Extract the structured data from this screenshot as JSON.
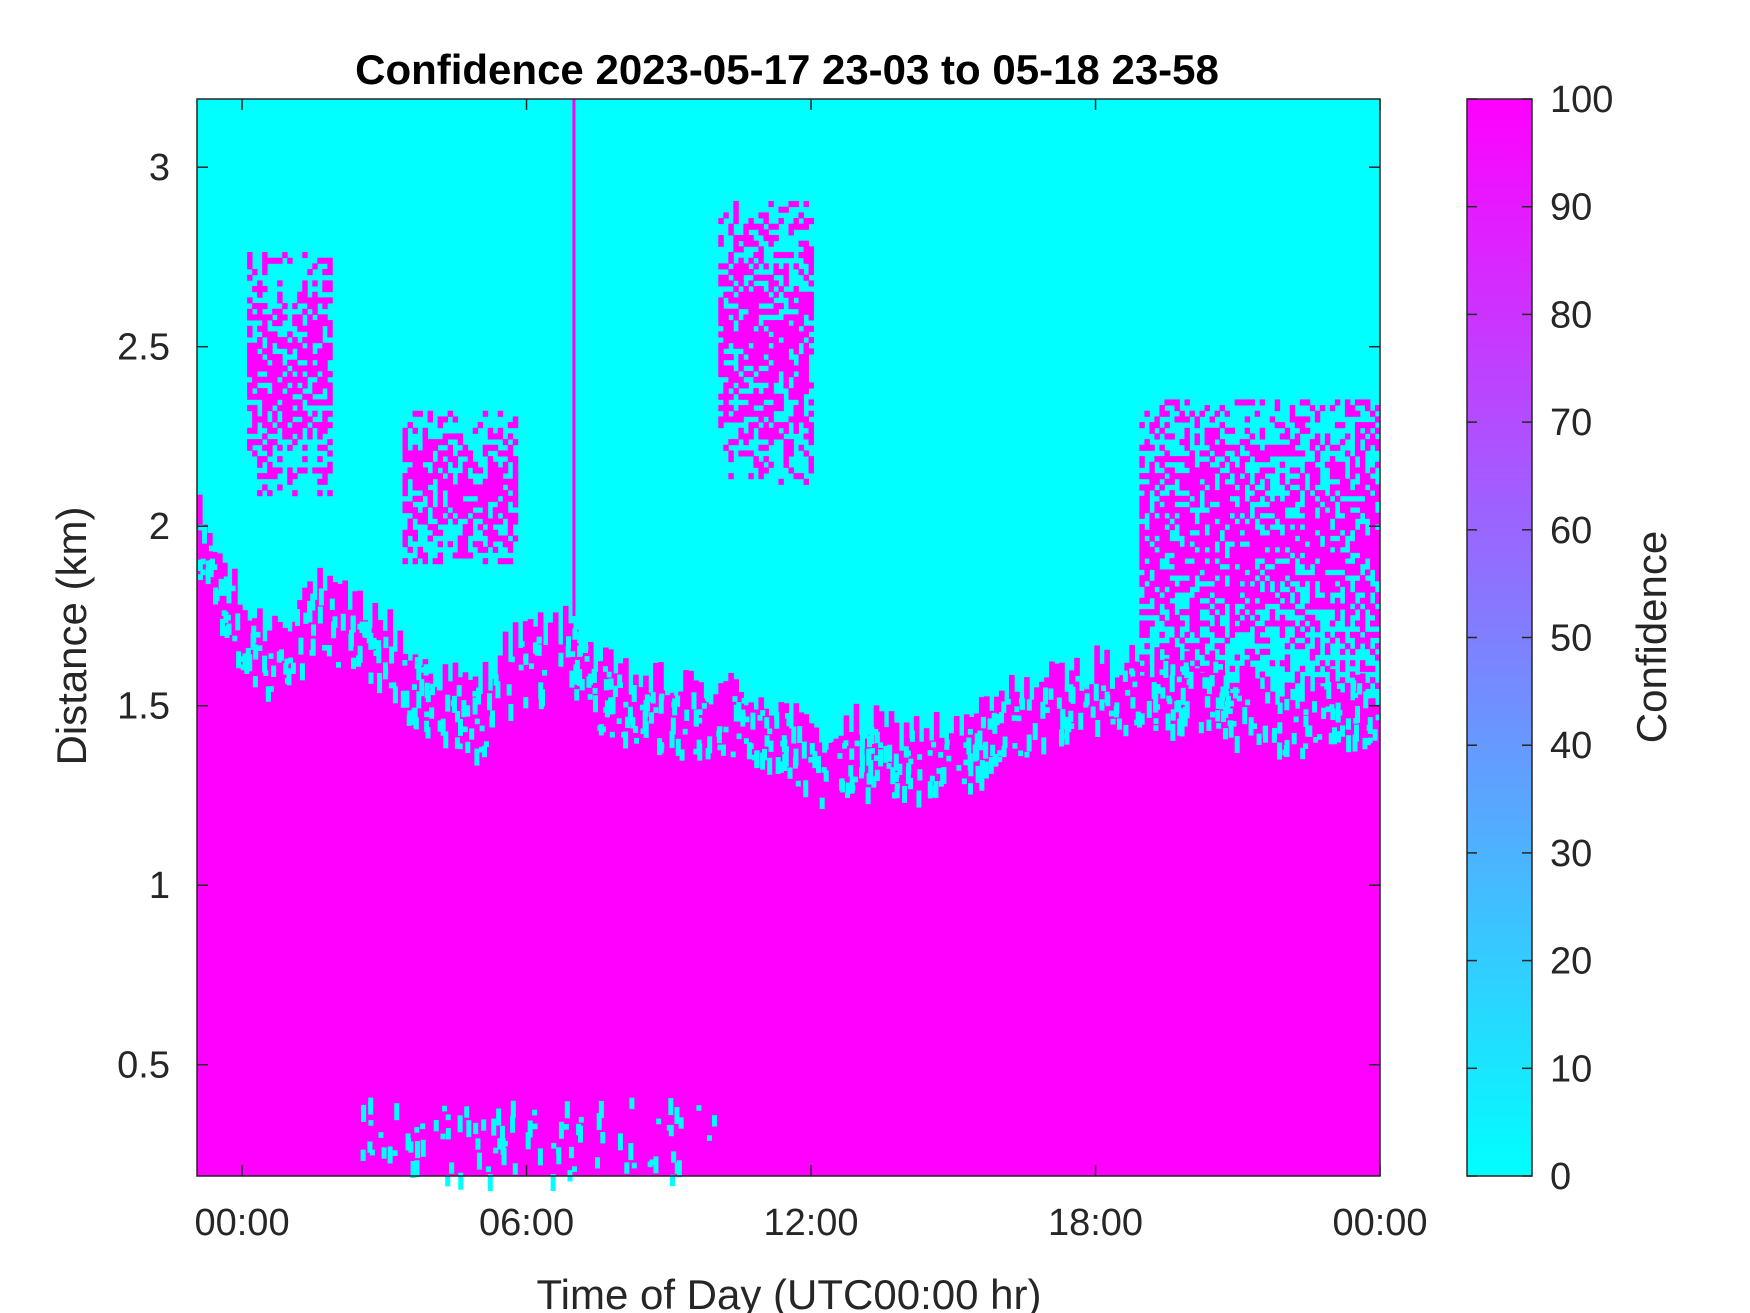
{
  "chart_data": {
    "type": "heatmap",
    "title": "Confidence 2023-05-17 23-03 to 05-18 23-58",
    "xlabel": "Time of Day (UTC00:00 hr)",
    "ylabel": "Distance (km)",
    "colorbar_label": "Confidence",
    "x_unit": "hours from 2023-05-18 00:00 UTC",
    "xlim": [
      -0.95,
      24.0
    ],
    "ylim": [
      0.19,
      3.19
    ],
    "x_ticks": [
      0,
      6,
      12,
      18,
      24
    ],
    "x_tick_labels": [
      "00:00",
      "06:00",
      "12:00",
      "18:00",
      "00:00"
    ],
    "y_ticks": [
      0.5,
      1,
      1.5,
      2,
      2.5,
      3
    ],
    "y_tick_labels": [
      "0.5",
      "1",
      "1.5",
      "2",
      "2.5",
      "3"
    ],
    "colorbar_range": [
      0,
      100
    ],
    "colorbar_ticks": [
      0,
      10,
      20,
      30,
      40,
      50,
      60,
      70,
      80,
      90,
      100
    ],
    "colorbar_tick_labels": [
      "0",
      "10",
      "20",
      "30",
      "40",
      "50",
      "60",
      "70",
      "80",
      "90",
      "100"
    ],
    "colormap": {
      "low_color": "#00ffff",
      "high_color": "#ff00ff"
    },
    "description_of_field": "Confidence near 100 below a boundary, near 0 above it",
    "boundary_x": [
      -0.95,
      -0.5,
      0,
      0.5,
      1,
      1.5,
      2,
      2.5,
      3,
      3.5,
      4,
      4.5,
      5,
      5.5,
      6,
      6.5,
      7,
      7.5,
      8,
      8.5,
      9,
      9.5,
      10,
      10.5,
      11,
      11.5,
      12,
      12.5,
      13,
      13.5,
      14,
      14.5,
      15,
      15.5,
      16,
      16.5,
      17,
      17.5,
      18,
      18.5,
      19,
      19.5,
      20,
      20.5,
      21,
      21.5,
      22,
      22.5,
      23,
      23.5,
      24
    ],
    "boundary_y_km": [
      2.05,
      1.92,
      1.78,
      1.72,
      1.76,
      1.84,
      1.8,
      1.78,
      1.74,
      1.65,
      1.6,
      1.57,
      1.55,
      1.66,
      1.7,
      1.72,
      1.72,
      1.62,
      1.58,
      1.57,
      1.56,
      1.55,
      1.55,
      1.54,
      1.52,
      1.48,
      1.42,
      1.42,
      1.45,
      1.44,
      1.43,
      1.44,
      1.42,
      1.47,
      1.52,
      1.55,
      1.57,
      1.58,
      1.62,
      1.62,
      1.6,
      1.63,
      1.62,
      1.63,
      1.58,
      1.56,
      1.55,
      1.55,
      1.58,
      1.57,
      1.55
    ],
    "upper_layers": [
      {
        "x_start": 0.2,
        "x_end": 1.9,
        "y_bottom": 2.1,
        "y_top": 2.76,
        "confidence": 100
      },
      {
        "x_start": 3.4,
        "x_end": 5.8,
        "y_bottom": 1.9,
        "y_top": 2.32,
        "confidence": 100
      },
      {
        "x_start": 10.1,
        "x_end": 12.0,
        "y_bottom": 2.12,
        "y_top": 2.9,
        "confidence": 100
      },
      {
        "x_start": 19.0,
        "x_end": 24.0,
        "y_bottom": 1.55,
        "y_top": 2.35,
        "confidence": 100
      }
    ],
    "vertical_line": {
      "x": 7.0,
      "y_bottom": 1.75,
      "y_top": 3.19,
      "confidence": 100
    }
  }
}
